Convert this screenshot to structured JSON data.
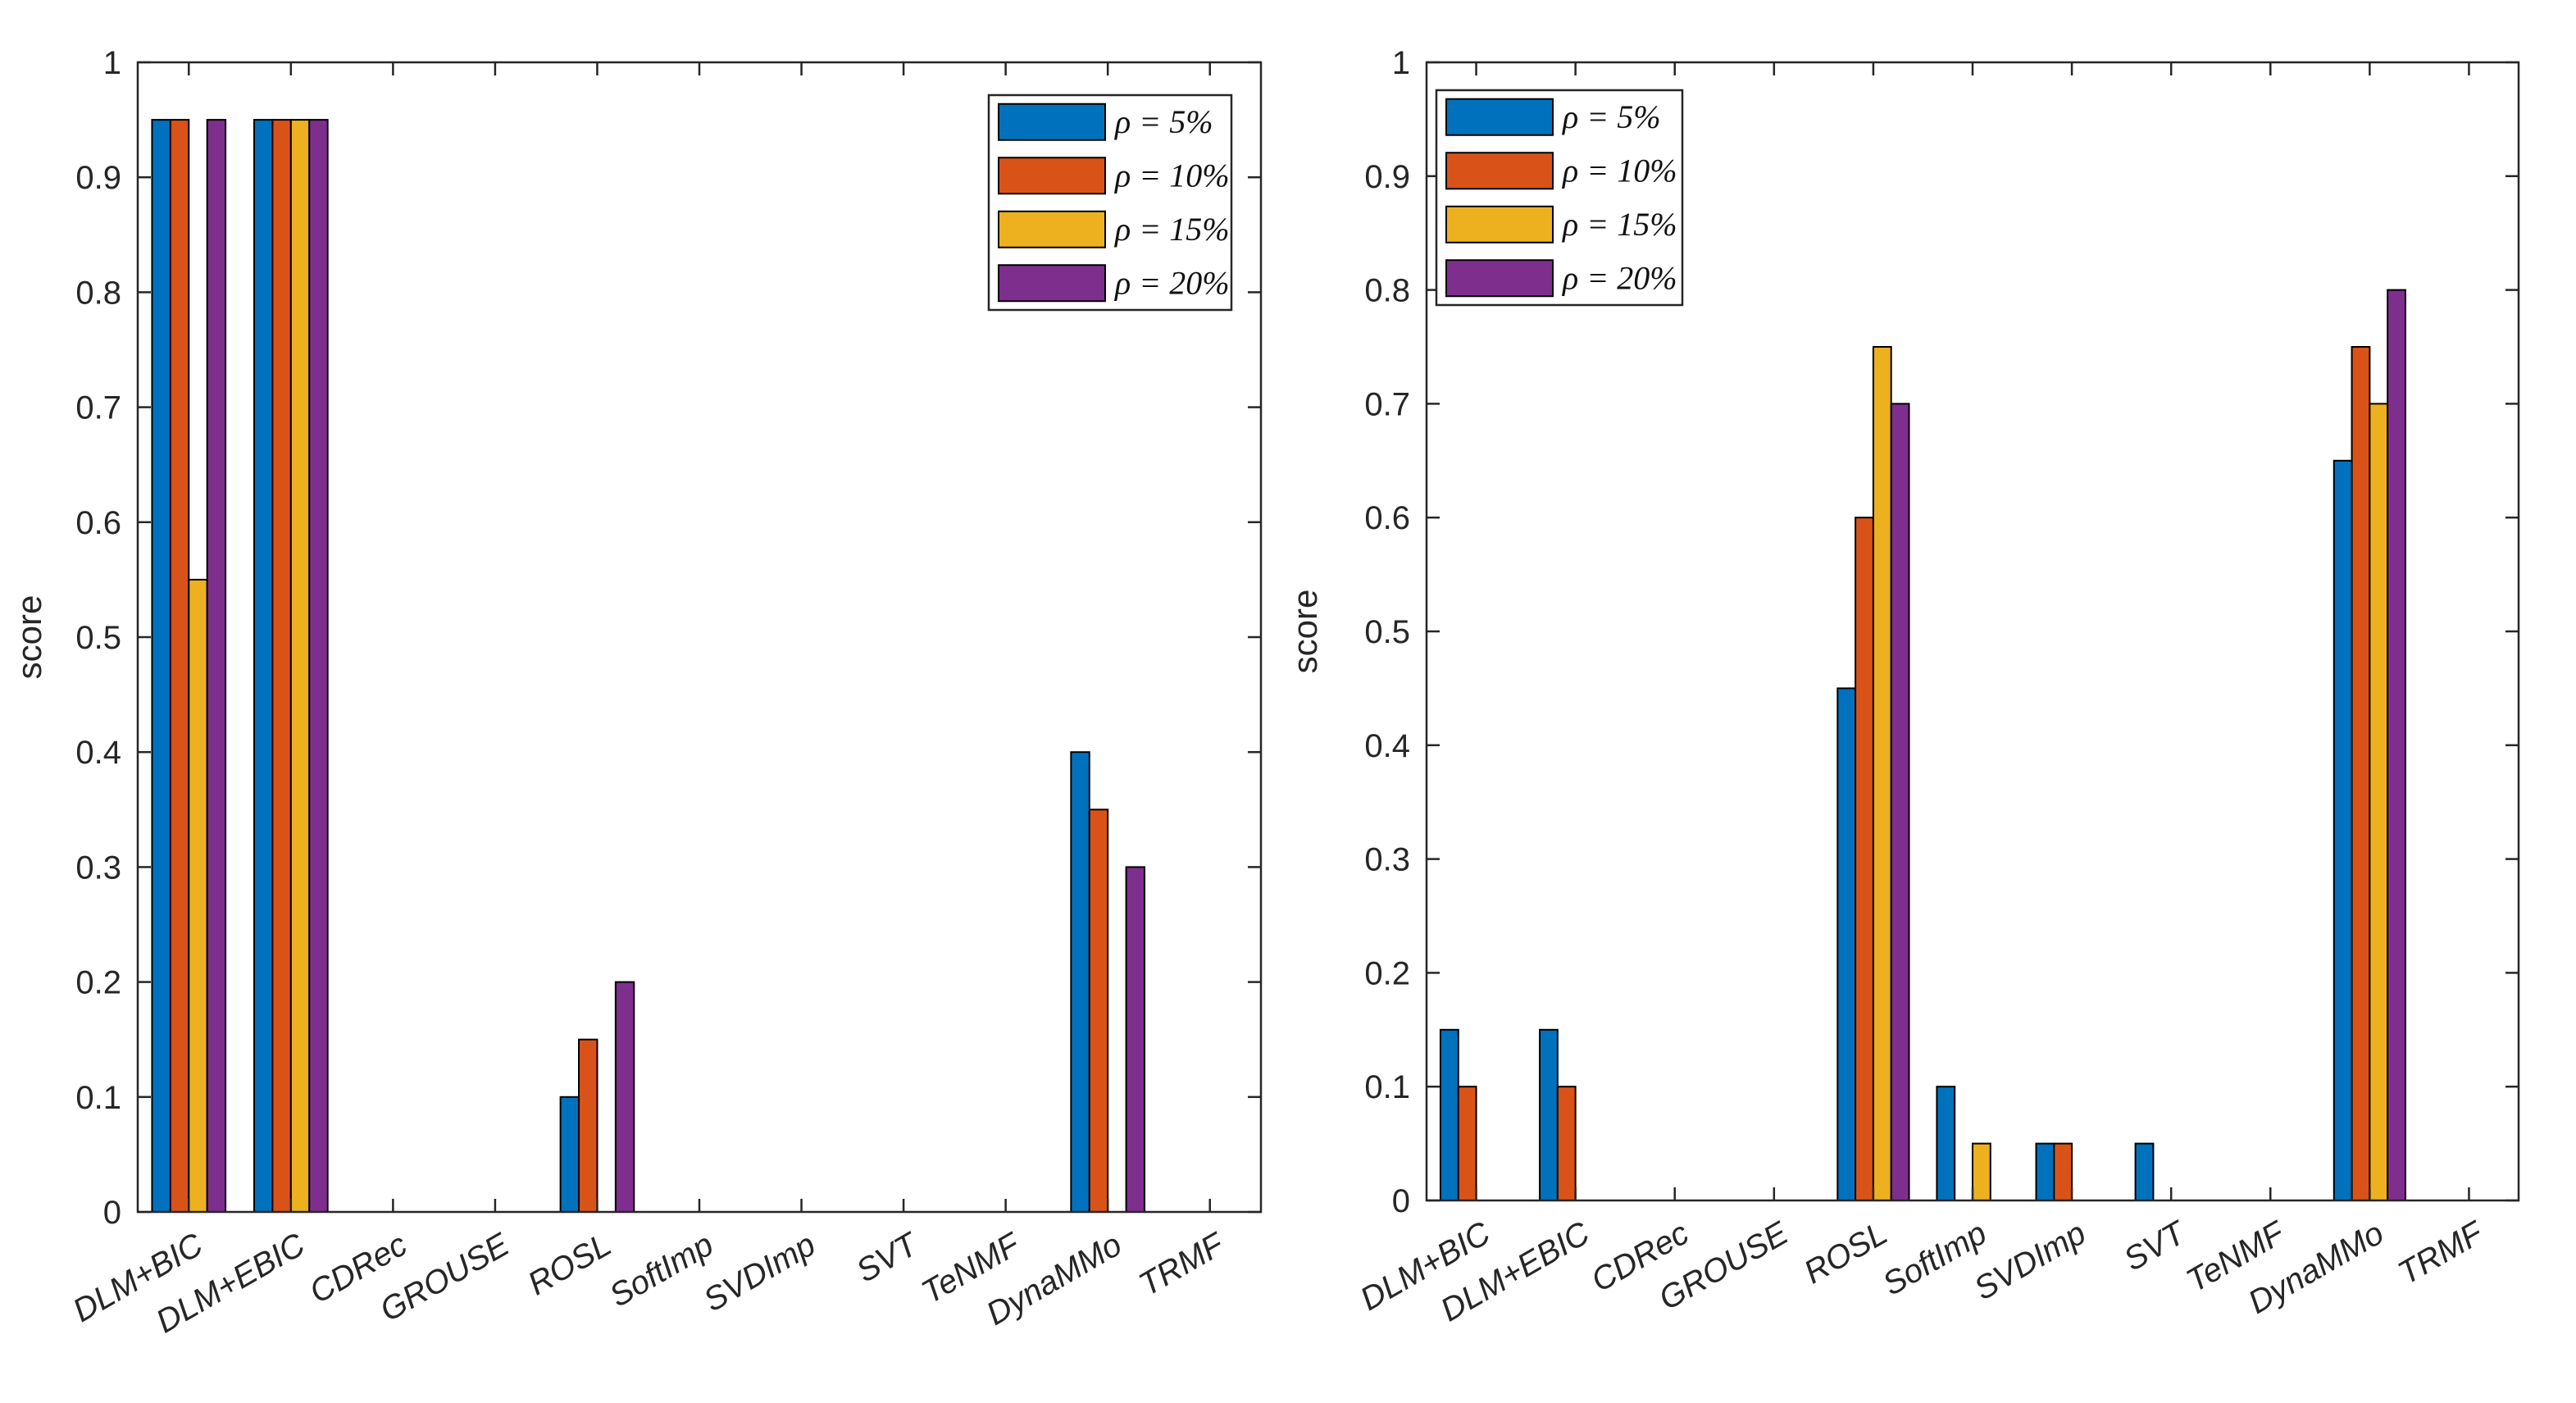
{
  "chart_data": [
    {
      "type": "bar",
      "title": "",
      "xlabel": "",
      "ylabel": "score",
      "ylim": [
        0,
        1
      ],
      "yticks": [
        "0",
        "0.1",
        "0.2",
        "0.3",
        "0.4",
        "0.5",
        "0.6",
        "0.7",
        "0.8",
        "0.9",
        "1"
      ],
      "grid": false,
      "legend_position": "top-right",
      "categories": [
        "DLM+BIC",
        "DLM+EBIC",
        "CDRec",
        "GROUSE",
        "ROSL",
        "SoftImp",
        "SVDImp",
        "SVT",
        "TeNMF",
        "DynaMMo",
        "TRMF"
      ],
      "series": [
        {
          "name": "ρ = 5%",
          "color": "#0072BD",
          "values": [
            0.95,
            0.95,
            0,
            0,
            0.1,
            0,
            0,
            0,
            0,
            0.4,
            0
          ]
        },
        {
          "name": "ρ = 10%",
          "color": "#D95319",
          "values": [
            0.95,
            0.95,
            0,
            0,
            0.15,
            0,
            0,
            0,
            0,
            0.35,
            0
          ]
        },
        {
          "name": "ρ = 15%",
          "color": "#EDB120",
          "values": [
            0.55,
            0.95,
            0,
            0,
            0,
            0,
            0,
            0,
            0,
            0,
            0
          ]
        },
        {
          "name": "ρ = 20%",
          "color": "#7E2F8E",
          "values": [
            0.95,
            0.95,
            0,
            0,
            0.2,
            0,
            0,
            0,
            0,
            0.3,
            0
          ]
        }
      ]
    },
    {
      "type": "bar",
      "title": "",
      "xlabel": "",
      "ylabel": "score",
      "ylim": [
        0,
        1
      ],
      "yticks": [
        "0",
        "0.1",
        "0.2",
        "0.3",
        "0.4",
        "0.5",
        "0.6",
        "0.7",
        "0.8",
        "0.9",
        "1"
      ],
      "grid": false,
      "legend_position": "top-left",
      "categories": [
        "DLM+BIC",
        "DLM+EBIC",
        "CDRec",
        "GROUSE",
        "ROSL",
        "SoftImp",
        "SVDImp",
        "SVT",
        "TeNMF",
        "DynaMMo",
        "TRMF"
      ],
      "series": [
        {
          "name": "ρ = 5%",
          "color": "#0072BD",
          "values": [
            0.15,
            0.15,
            0,
            0,
            0.45,
            0.1,
            0.05,
            0.05,
            0,
            0.65,
            0
          ]
        },
        {
          "name": "ρ = 10%",
          "color": "#D95319",
          "values": [
            0.1,
            0.1,
            0,
            0,
            0.6,
            0,
            0.05,
            0,
            0,
            0.75,
            0
          ]
        },
        {
          "name": "ρ = 15%",
          "color": "#EDB120",
          "values": [
            0,
            0,
            0,
            0,
            0.75,
            0.05,
            0,
            0,
            0,
            0.7,
            0
          ]
        },
        {
          "name": "ρ = 20%",
          "color": "#7E2F8E",
          "values": [
            0,
            0,
            0,
            0,
            0.7,
            0,
            0,
            0,
            0,
            0.8,
            0
          ]
        }
      ]
    }
  ]
}
